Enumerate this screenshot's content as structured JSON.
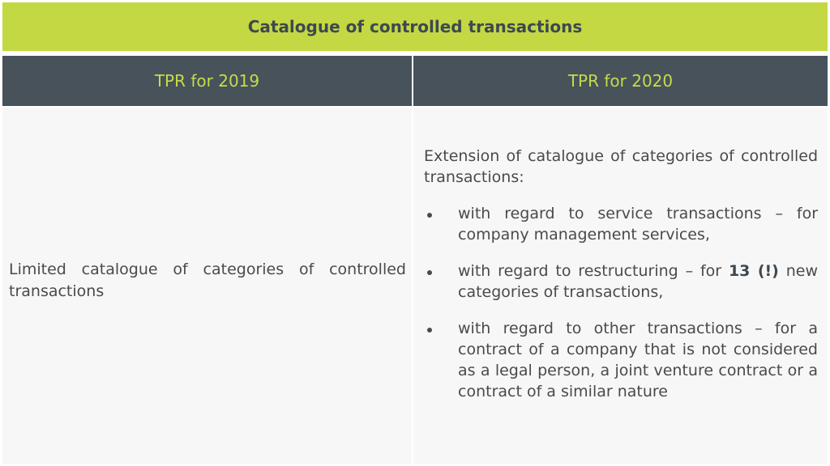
{
  "title": "Catalogue of controlled transactions",
  "columns": [
    "TPR for 2019",
    "TPR for 2020"
  ],
  "left_cell": "Limited catalogue of categories of controlled transactions",
  "right_cell": {
    "intro": "Extension of catalogue of categories of controlled transactions:",
    "items": [
      {
        "text": "with regard to service transactions – for company management services,"
      },
      {
        "pre": "with regard to restructuring – for ",
        "bold": "13 (!)",
        "post": " new categories of transactions,"
      },
      {
        "text": "with regard to other transactions – for a contract of a company that is not considered as a legal person, a joint venture contract or a contract of a similar nature"
      }
    ]
  },
  "colors": {
    "title_bg": "#c3d843",
    "header_bg": "#47525b",
    "header_text": "#c6dc4a",
    "cell_bg": "#f7f7f7"
  }
}
